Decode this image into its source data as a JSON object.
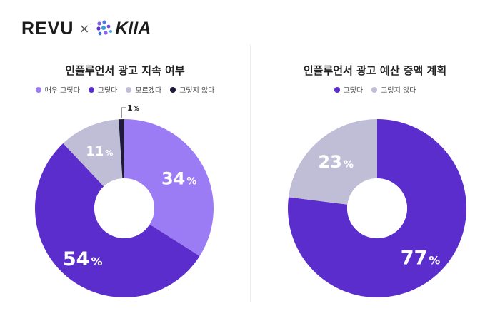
{
  "brand": {
    "left_logo": "REVU",
    "separator": "×",
    "right_logo": "KIIA"
  },
  "chart_data": [
    {
      "type": "pie",
      "title": "인플루언서 광고 지속 여부",
      "categories": [
        "매우 그렇다",
        "그렇다",
        "모르겠다",
        "그렇지 않다"
      ],
      "values": [
        34,
        54,
        11,
        1
      ],
      "labels": [
        "34%",
        "54%",
        "11%",
        "1%"
      ],
      "colors": [
        "#9b7cf5",
        "#5b2dcc",
        "#c0bed6",
        "#1f1a3d"
      ],
      "legend_position": "top"
    },
    {
      "type": "pie",
      "title": "인플루언서 광고 예산 증액 계획",
      "categories": [
        "그렇다",
        "그렇지 않다"
      ],
      "values": [
        77,
        23
      ],
      "labels": [
        "77%",
        "23%"
      ],
      "colors": [
        "#5b2dcc",
        "#c0bed6"
      ],
      "legend_position": "top"
    }
  ]
}
